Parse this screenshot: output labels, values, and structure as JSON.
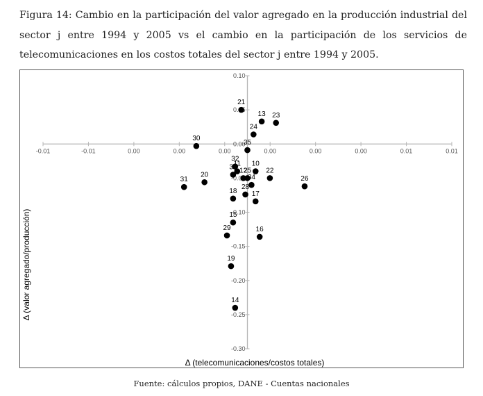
{
  "caption": "Figura 14: Cambio en la participación del valor agregado en la producción industrial del sector j entre 1994 y 2005 vs el cambio en la participación de los servicios de telecomunicaciones en los costos totales del sector j entre 1994 y 2005.",
  "source": "Fuente: cálculos propios, DANE - Cuentas nacionales",
  "chart_data": {
    "type": "scatter",
    "title": "",
    "xlabel": "Δ (telecomunicaciones/costos totales)",
    "ylabel": "Δ (valor agregado/producción)",
    "xlim": [
      -0.01,
      0.01
    ],
    "ylim": [
      -0.3,
      0.1
    ],
    "x_tick_labels": [
      "-0.01",
      "-0.01",
      "0.00",
      "0.00",
      "0.00",
      "0.00",
      "0.00",
      "0.00",
      "0.01",
      "0.01"
    ],
    "y_tick_labels": [
      "0.10",
      "0.05",
      "0.00",
      "-0.05",
      "-0.10",
      "-0.15",
      "-0.20",
      "-0.25",
      "-0.30"
    ],
    "y_ticks": [
      0.1,
      0.05,
      0.0,
      -0.05,
      -0.1,
      -0.15,
      -0.2,
      -0.25,
      -0.3
    ],
    "grid": false,
    "points": [
      {
        "label": "21",
        "x": -0.0003,
        "y": 0.05
      },
      {
        "label": "13",
        "x": 0.0007,
        "y": 0.033
      },
      {
        "label": "23",
        "x": 0.0014,
        "y": 0.031
      },
      {
        "label": "24",
        "x": 0.0003,
        "y": 0.014
      },
      {
        "label": "30",
        "x": -0.0025,
        "y": -0.003
      },
      {
        "label": "35",
        "x": 0.0,
        "y": -0.009
      },
      {
        "label": "32",
        "x": -0.0006,
        "y": -0.033
      },
      {
        "label": "11",
        "x": -0.0005,
        "y": -0.04
      },
      {
        "label": "33",
        "x": -0.0007,
        "y": -0.045
      },
      {
        "label": "10",
        "x": 0.0004,
        "y": -0.04
      },
      {
        "label": "25",
        "x": 0.0,
        "y": -0.05
      },
      {
        "label": "22",
        "x": 0.0011,
        "y": -0.05
      },
      {
        "label": "26",
        "x": 0.0028,
        "y": -0.062
      },
      {
        "label": "31",
        "x": -0.0031,
        "y": -0.063
      },
      {
        "label": "20",
        "x": -0.0021,
        "y": -0.056
      },
      {
        "label": "12",
        "x": -0.0002,
        "y": -0.05
      },
      {
        "label": "34",
        "x": 0.0002,
        "y": -0.06
      },
      {
        "label": "28",
        "x": -0.0001,
        "y": -0.074
      },
      {
        "label": "18",
        "x": -0.0007,
        "y": -0.08
      },
      {
        "label": "17",
        "x": 0.0004,
        "y": -0.084
      },
      {
        "label": "15",
        "x": -0.0007,
        "y": -0.115
      },
      {
        "label": "16",
        "x": 0.0006,
        "y": -0.136
      },
      {
        "label": "29",
        "x": -0.001,
        "y": -0.134
      },
      {
        "label": "19",
        "x": -0.0008,
        "y": -0.179
      },
      {
        "label": "14",
        "x": -0.0006,
        "y": -0.24
      }
    ]
  }
}
